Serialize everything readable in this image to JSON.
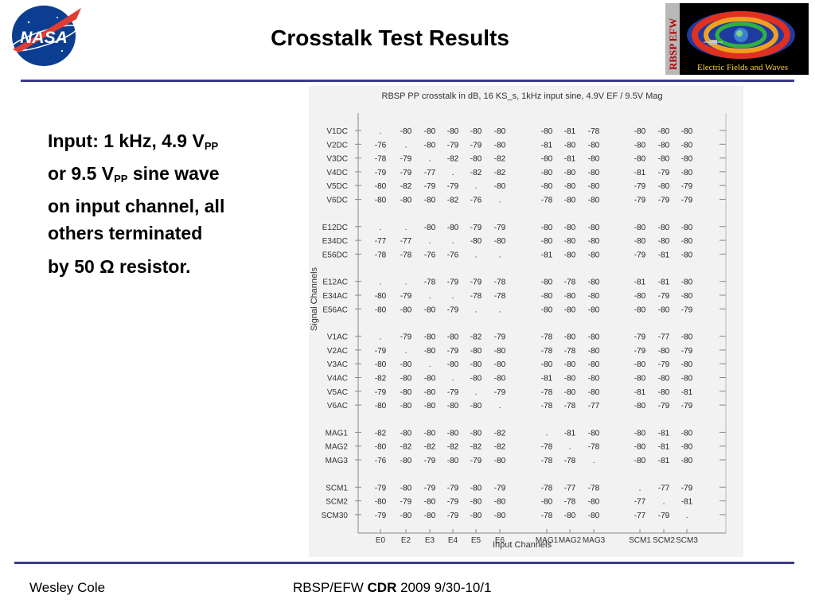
{
  "logos": {
    "nasa_text": "NASA",
    "efw_side_text": "RBSP EFW",
    "efw_caption": "Electric Fields and Waves"
  },
  "title": "Crosstalk Test Results",
  "bullet": {
    "line1_pre": "Input: 1 kHz, 4.9 V",
    "line1_sub": "PP",
    "line2_pre": "or 9.5 V",
    "line2_sub": "PP",
    "line2_post": " sine wave",
    "line3": "on input channel, all",
    "line4": "others terminated",
    "line5": "by 50 Ω resistor."
  },
  "footer": {
    "author": "Wesley Cole",
    "mid_pre": "RBSP/EFW ",
    "mid_bold": "CDR",
    "mid_post": " 2009 9/30-10/1"
  },
  "chart_data": {
    "type": "table",
    "title": "RBSP PP crosstalk in dB, 16 KS_s, 1kHz input sine, 4.9V EF / 9.5V Mag",
    "xlabel": "Input Channels",
    "ylabel": "Signal Channels",
    "x_tick_labels": [
      "E0",
      "E2",
      "E3",
      "E4",
      "E5",
      "E6",
      "MAG1",
      "MAG2",
      "MAG3",
      "SCM1",
      "SCM2",
      "SCM3"
    ],
    "rows": [
      {
        "label": "V1DC",
        "values": [
          ".",
          "-80",
          "-80",
          "-80",
          "-80",
          "-80",
          "-80",
          "-81",
          "-78",
          "-80",
          "-80",
          "-80"
        ]
      },
      {
        "label": "V2DC",
        "values": [
          "-76",
          ".",
          "-80",
          "-79",
          "-79",
          "-80",
          "-81",
          "-80",
          "-80",
          "-80",
          "-80",
          "-80"
        ]
      },
      {
        "label": "V3DC",
        "values": [
          "-78",
          "-79",
          ".",
          "-82",
          "-80",
          "-82",
          "-80",
          "-81",
          "-80",
          "-80",
          "-80",
          "-80"
        ]
      },
      {
        "label": "V4DC",
        "values": [
          "-79",
          "-79",
          "-77",
          ".",
          "-82",
          "-82",
          "-80",
          "-80",
          "-80",
          "-81",
          "-79",
          "-80"
        ]
      },
      {
        "label": "V5DC",
        "values": [
          "-80",
          "-82",
          "-79",
          "-79",
          ".",
          "-80",
          "-80",
          "-80",
          "-80",
          "-79",
          "-80",
          "-79"
        ]
      },
      {
        "label": "V6DC",
        "values": [
          "-80",
          "-80",
          "-80",
          "-82",
          "-76",
          ".",
          "-78",
          "-80",
          "-80",
          "-79",
          "-79",
          "-79"
        ]
      },
      {
        "label": "E12DC",
        "values": [
          ".",
          ".",
          "-80",
          "-80",
          "-79",
          "-79",
          "-80",
          "-80",
          "-80",
          "-80",
          "-80",
          "-80"
        ]
      },
      {
        "label": "E34DC",
        "values": [
          "-77",
          "-77",
          ".",
          ".",
          "-80",
          "-80",
          "-80",
          "-80",
          "-80",
          "-80",
          "-80",
          "-80"
        ]
      },
      {
        "label": "E56DC",
        "values": [
          "-78",
          "-78",
          "-76",
          "-76",
          ".",
          ".",
          "-81",
          "-80",
          "-80",
          "-79",
          "-81",
          "-80"
        ]
      },
      {
        "label": "E12AC",
        "values": [
          ".",
          ".",
          "-78",
          "-79",
          "-79",
          "-78",
          "-80",
          "-78",
          "-80",
          "-81",
          "-81",
          "-80"
        ]
      },
      {
        "label": "E34AC",
        "values": [
          "-80",
          "-79",
          ".",
          ".",
          "-78",
          "-78",
          "-80",
          "-80",
          "-80",
          "-80",
          "-79",
          "-80"
        ]
      },
      {
        "label": "E56AC",
        "values": [
          "-80",
          "-80",
          "-80",
          "-79",
          ".",
          ".",
          "-80",
          "-80",
          "-80",
          "-80",
          "-80",
          "-79"
        ]
      },
      {
        "label": "V1AC",
        "values": [
          ".",
          "-79",
          "-80",
          "-80",
          "-82",
          "-79",
          "-78",
          "-80",
          "-80",
          "-79",
          "-77",
          "-80"
        ]
      },
      {
        "label": "V2AC",
        "values": [
          "-79",
          ".",
          "-80",
          "-79",
          "-80",
          "-80",
          "-78",
          "-78",
          "-80",
          "-79",
          "-80",
          "-79"
        ]
      },
      {
        "label": "V3AC",
        "values": [
          "-80",
          "-80",
          ".",
          "-80",
          "-80",
          "-80",
          "-80",
          "-80",
          "-80",
          "-80",
          "-79",
          "-80"
        ]
      },
      {
        "label": "V4AC",
        "values": [
          "-82",
          "-80",
          "-80",
          ".",
          "-80",
          "-80",
          "-81",
          "-80",
          "-80",
          "-80",
          "-80",
          "-80"
        ]
      },
      {
        "label": "V5AC",
        "values": [
          "-79",
          "-80",
          "-80",
          "-79",
          ".",
          "-79",
          "-78",
          "-80",
          "-80",
          "-81",
          "-80",
          "-81"
        ]
      },
      {
        "label": "V6AC",
        "values": [
          "-80",
          "-80",
          "-80",
          "-80",
          "-80",
          ".",
          "-78",
          "-78",
          "-77",
          "-80",
          "-79",
          "-79"
        ]
      },
      {
        "label": "MAG1",
        "values": [
          "-82",
          "-80",
          "-80",
          "-80",
          "-80",
          "-82",
          ".",
          "-81",
          "-80",
          "-80",
          "-81",
          "-80"
        ]
      },
      {
        "label": "MAG2",
        "values": [
          "-80",
          "-82",
          "-82",
          "-82",
          "-82",
          "-82",
          "-78",
          ".",
          "-78",
          "-80",
          "-81",
          "-80"
        ]
      },
      {
        "label": "MAG3",
        "values": [
          "-76",
          "-80",
          "-79",
          "-80",
          "-79",
          "-80",
          "-78",
          "-78",
          ".",
          "-80",
          "-81",
          "-80"
        ]
      },
      {
        "label": "SCM1",
        "values": [
          "-79",
          "-80",
          "-79",
          "-79",
          "-80",
          "-79",
          "-78",
          "-77",
          "-78",
          ".",
          "-77",
          "-79"
        ]
      },
      {
        "label": "SCM2",
        "values": [
          "-80",
          "-79",
          "-80",
          "-79",
          "-80",
          "-80",
          "-80",
          "-78",
          "-80",
          "-77",
          ".",
          "-81"
        ]
      },
      {
        "label": "SCM30",
        "values": [
          "-79",
          "-80",
          "-80",
          "-79",
          "-80",
          "-80",
          "-78",
          "-80",
          "-80",
          "-77",
          "-79",
          "."
        ]
      }
    ]
  }
}
